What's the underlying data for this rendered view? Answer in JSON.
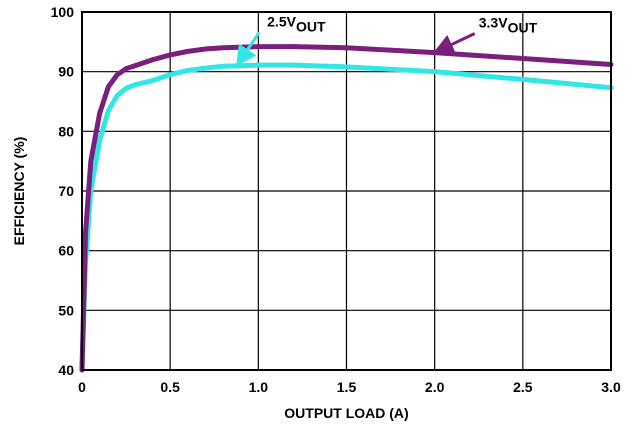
{
  "chart_data": {
    "type": "line",
    "title": "",
    "xlabel": "OUTPUT LOAD (A)",
    "ylabel": "EFFICIENCY (%)",
    "xlim": [
      0,
      3.0
    ],
    "ylim": [
      40,
      100
    ],
    "x_ticks": [
      "0",
      "0.5",
      "1.0",
      "1.5",
      "2.0",
      "2.5",
      "3.0"
    ],
    "y_ticks": [
      "40",
      "50",
      "60",
      "70",
      "80",
      "90",
      "100"
    ],
    "grid": true,
    "series": [
      {
        "name": "3.3VOUT",
        "label_main": "3.3V",
        "label_sub": "OUT",
        "color": "#7b1f7f",
        "points": [
          [
            0.0,
            40
          ],
          [
            0.02,
            63
          ],
          [
            0.05,
            75
          ],
          [
            0.1,
            83
          ],
          [
            0.15,
            87.5
          ],
          [
            0.2,
            89.5
          ],
          [
            0.25,
            90.5
          ],
          [
            0.3,
            91
          ],
          [
            0.4,
            92
          ],
          [
            0.5,
            92.8
          ],
          [
            0.6,
            93.4
          ],
          [
            0.7,
            93.8
          ],
          [
            0.8,
            94
          ],
          [
            1.0,
            94.2
          ],
          [
            1.2,
            94.2
          ],
          [
            1.5,
            94
          ],
          [
            2.0,
            93.2
          ],
          [
            2.5,
            92.2
          ],
          [
            3.0,
            91.2
          ]
        ]
      },
      {
        "name": "2.5VOUT",
        "label_main": "2.5V",
        "label_sub": "OUT",
        "color": "#33e6e6",
        "points": [
          [
            0.0,
            40
          ],
          [
            0.02,
            58
          ],
          [
            0.05,
            70
          ],
          [
            0.1,
            78.5
          ],
          [
            0.15,
            83.5
          ],
          [
            0.2,
            86
          ],
          [
            0.25,
            87.2
          ],
          [
            0.3,
            87.8
          ],
          [
            0.4,
            88.5
          ],
          [
            0.5,
            89.5
          ],
          [
            0.6,
            90.2
          ],
          [
            0.7,
            90.6
          ],
          [
            0.8,
            90.9
          ],
          [
            1.0,
            91.1
          ],
          [
            1.2,
            91.1
          ],
          [
            1.5,
            90.8
          ],
          [
            2.0,
            90
          ],
          [
            2.5,
            88.7
          ],
          [
            3.0,
            87.3
          ]
        ]
      }
    ],
    "annotations": [
      {
        "series": "2.5VOUT",
        "point_at": [
          0.88,
          91.1
        ],
        "label_at": [
          1.05,
          97.6
        ]
      },
      {
        "series": "3.3VOUT",
        "point_at": [
          2.0,
          93.2
        ],
        "label_at": [
          2.25,
          97.4
        ]
      }
    ]
  }
}
